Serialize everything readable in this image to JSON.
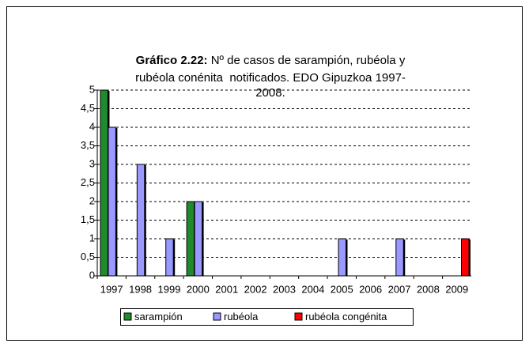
{
  "chart_data": {
    "type": "bar",
    "title_label": "Gráfico 2.22:",
    "title": [
      "Nº de casos de sarampión, rubéola y",
      "rubéola conénita  notificados. EDO Gipuzkoa 1997-",
      "2008."
    ],
    "categories": [
      "1997",
      "1998",
      "1999",
      "2000",
      "2001",
      "2002",
      "2003",
      "2004",
      "2005",
      "2006",
      "2007",
      "2008",
      "2009"
    ],
    "series": [
      {
        "name": "sarampión",
        "color": "#1f8a2e",
        "values": [
          5,
          0,
          0,
          2,
          0,
          0,
          0,
          0,
          0,
          0,
          0,
          0,
          0
        ]
      },
      {
        "name": "rubéola",
        "color": "#9999ff",
        "values": [
          4,
          3,
          1,
          2,
          0,
          0,
          0,
          0,
          1,
          0,
          1,
          0,
          0
        ]
      },
      {
        "name": "rubéola congénita",
        "color": "#ff0000",
        "values": [
          0,
          0,
          0,
          0,
          0,
          0,
          0,
          0,
          0,
          0,
          0,
          0,
          1
        ]
      }
    ],
    "ylim": [
      0,
      5
    ],
    "yticks": [
      0,
      {
        "value": 0.5,
        "label": "0,5"
      },
      1,
      {
        "value": 1.5,
        "label": "1,5"
      },
      2,
      {
        "value": 2.5,
        "label": "2,5"
      },
      3,
      {
        "value": 3.5,
        "label": "3,5"
      },
      4,
      {
        "value": 4.5,
        "label": "4,5"
      },
      5
    ],
    "grid": true,
    "legend": "bottom"
  }
}
